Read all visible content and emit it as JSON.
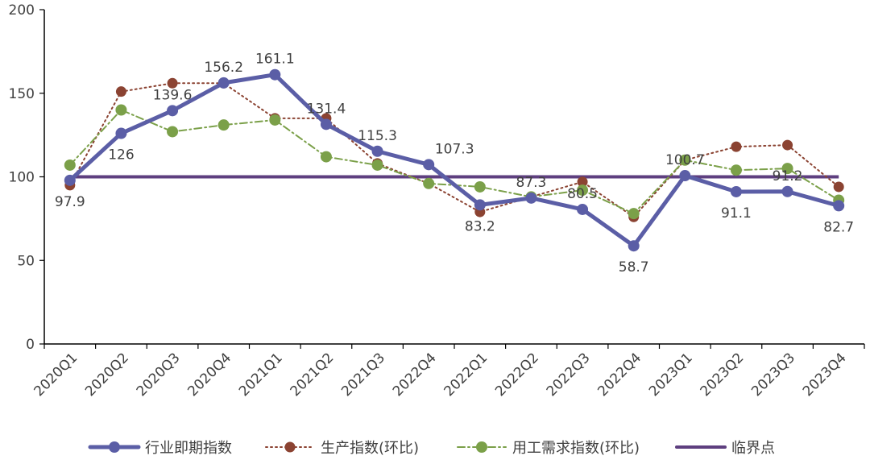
{
  "chart_data": {
    "type": "line",
    "title": "",
    "xlabel": "",
    "ylabel": "",
    "ylim": [
      0,
      200
    ],
    "yticks": [
      0,
      50,
      100,
      150,
      200
    ],
    "grid": false,
    "legend_position": "bottom",
    "categories": [
      "2020Q1",
      "2020Q2",
      "2020Q3",
      "2020Q4",
      "2021Q1",
      "2021Q2",
      "2021Q3",
      "2022Q4",
      "2022Q1",
      "2022Q2",
      "2022Q3",
      "2022Q4",
      "2023Q1",
      "2023Q2",
      "2023Q3",
      "2023Q4"
    ],
    "series": [
      {
        "name": "行业即期指数",
        "style": "solid-thick",
        "color": "#5B5EA6",
        "values": [
          97.9,
          126,
          139.6,
          156.2,
          161.1,
          131.4,
          115.3,
          107.3,
          83.2,
          87.3,
          80.5,
          58.7,
          100.7,
          91.1,
          91.2,
          82.7
        ],
        "labels": [
          "97.9",
          "126",
          "139.6",
          "156.2",
          "161.1",
          "131.4",
          "115.3",
          "107.3",
          "83.2",
          "87.3",
          "80.5",
          "58.7",
          "100.7",
          "91.1",
          "91.2",
          "82.7"
        ]
      },
      {
        "name": "生产指数(环比)",
        "style": "dotted",
        "color": "#8B4332",
        "values": [
          95,
          151,
          156,
          156,
          135,
          135,
          108,
          96,
          79,
          88,
          97,
          76,
          110,
          118,
          119,
          94
        ]
      },
      {
        "name": "用工需求指数(环比)",
        "style": "dash-dot",
        "color": "#7BA049",
        "values": [
          107,
          140,
          127,
          131,
          134,
          112,
          107,
          96,
          94,
          88,
          92,
          78,
          110,
          104,
          105,
          86
        ]
      },
      {
        "name": "临界点",
        "style": "reference",
        "color": "#5E3F7F",
        "values": [
          100,
          100,
          100,
          100,
          100,
          100,
          100,
          100,
          100,
          100,
          100,
          100,
          100,
          100,
          100,
          100
        ]
      }
    ]
  }
}
